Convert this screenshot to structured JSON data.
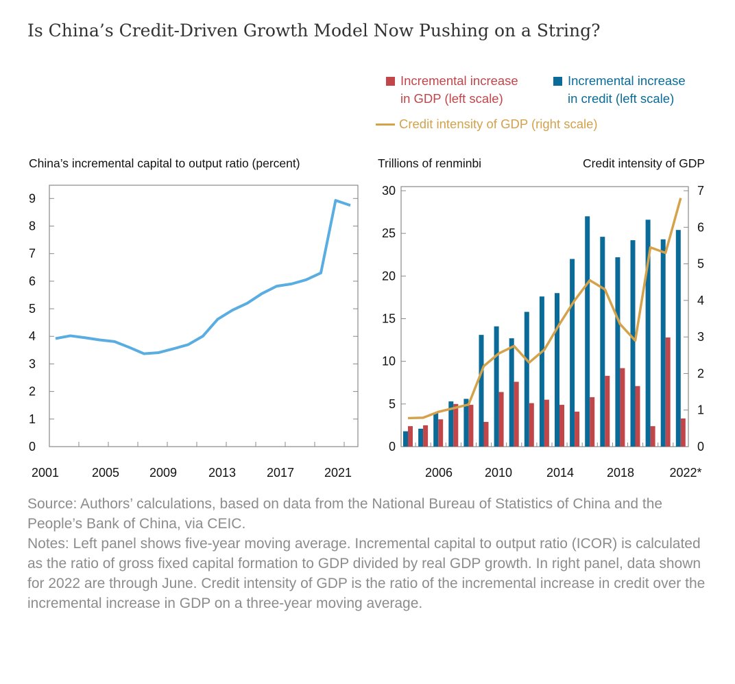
{
  "title": "Is China’s Credit-Driven Growth Model Now Pushing on a String?",
  "colors": {
    "icor_line": "#5aade0",
    "credit_bar": "#0a6b98",
    "gdp_bar": "#c0464a",
    "intensity_line": "#d3a24a"
  },
  "legend": {
    "gdp": [
      "Incremental increase",
      "in GDP (left scale)"
    ],
    "credit": [
      "Incremental increase",
      "in credit (left scale)"
    ],
    "intensity": "Credit intensity of GDP (right scale)"
  },
  "chart_data": [
    {
      "type": "line",
      "title": "China’s incremental capital to output ratio (percent)",
      "x": [
        2001,
        2002,
        2003,
        2004,
        2005,
        2006,
        2007,
        2008,
        2009,
        2010,
        2011,
        2012,
        2013,
        2014,
        2015,
        2016,
        2017,
        2018,
        2019,
        2020,
        2021
      ],
      "values": [
        3.92,
        4.02,
        3.95,
        3.87,
        3.81,
        3.6,
        3.37,
        3.41,
        3.55,
        3.7,
        4.01,
        4.62,
        4.95,
        5.2,
        5.55,
        5.82,
        5.9,
        6.05,
        6.3,
        8.93,
        8.75
      ],
      "ylim": [
        0,
        9.5
      ],
      "yticks": [
        0,
        1,
        2,
        3,
        4,
        5,
        6,
        7,
        8,
        9
      ],
      "xtick_labels": [
        "2001",
        "2005",
        "2009",
        "2013",
        "2017",
        "2021"
      ],
      "grid": false
    },
    {
      "type": "bar+line",
      "ylabel_left": "Trillions of renminbi",
      "ylabel_right": "Credit intensity of GDP",
      "categories": [
        2004,
        2005,
        2006,
        2007,
        2008,
        2009,
        2010,
        2011,
        2012,
        2013,
        2014,
        2015,
        2016,
        2017,
        2018,
        2019,
        2020,
        2021,
        2022
      ],
      "series": [
        {
          "name": "Incremental increase in credit (left scale)",
          "axis": "left",
          "type": "bar",
          "values": [
            1.8,
            2.1,
            4.0,
            5.3,
            5.6,
            13.1,
            14.1,
            12.7,
            15.8,
            17.6,
            18.0,
            22.0,
            27.0,
            24.6,
            22.2,
            24.2,
            26.6,
            24.3,
            25.4
          ]
        },
        {
          "name": "Incremental increase in GDP (left scale)",
          "axis": "left",
          "type": "bar",
          "values": [
            2.4,
            2.5,
            3.2,
            5.0,
            4.9,
            2.9,
            6.4,
            7.6,
            5.1,
            5.5,
            4.9,
            4.1,
            5.8,
            8.3,
            9.2,
            7.1,
            2.4,
            12.8,
            3.3
          ]
        },
        {
          "name": "Credit intensity of GDP (right scale)",
          "axis": "right",
          "type": "line",
          "values": [
            0.78,
            0.79,
            0.95,
            1.05,
            1.15,
            2.2,
            2.55,
            2.75,
            2.3,
            2.65,
            3.35,
            4.0,
            4.55,
            4.3,
            3.35,
            2.9,
            5.45,
            5.3,
            6.8
          ]
        }
      ],
      "ylim_left": [
        0,
        30
      ],
      "ylim_right": [
        0,
        7
      ],
      "yticks_left": [
        0,
        5,
        10,
        15,
        20,
        25,
        30
      ],
      "yticks_right": [
        0,
        1,
        2,
        3,
        4,
        5,
        6,
        7
      ],
      "xtick_labels": [
        "2006",
        "2010",
        "2014",
        "2018",
        "2022*"
      ],
      "grid": false
    }
  ],
  "notes": [
    "Source: Authors’ calculations, based on data from the National Bureau of Statistics of China and the People’s Bank of China, via CEIC.",
    "Notes: Left panel shows five-year moving average. Incremental capital to output ratio (ICOR) is calculated as the ratio of gross fixed capital formation to GDP divided by real GDP growth. In right panel, data shown for 2022 are through June. Credit intensity of GDP is the ratio of the incremental increase in credit over the incremental increase in GDP on a three-year moving average."
  ]
}
